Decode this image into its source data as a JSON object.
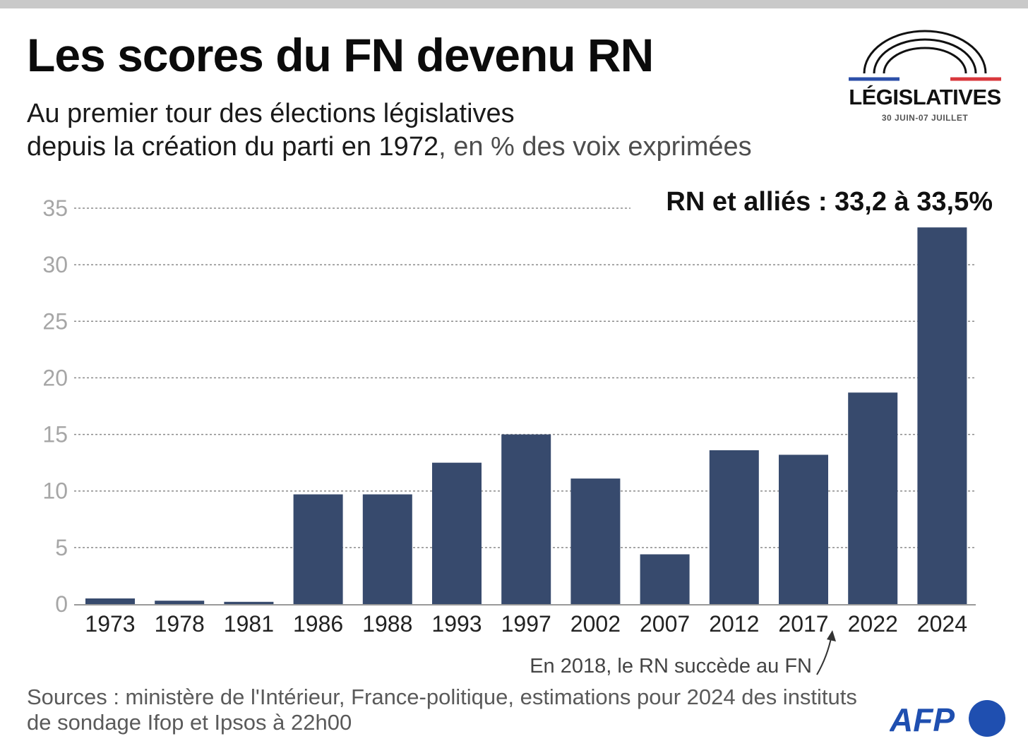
{
  "header": {
    "title": "Les scores du FN devenu RN",
    "subtitle_line1": "Au premier tour des élections législatives",
    "subtitle_line2_main": "depuis la création du parti en 1972",
    "subtitle_line2_unit": ", en % des voix exprimées"
  },
  "logo": {
    "word": "LÉGISLATIVES",
    "dates": "30 JUIN-07 JUILLET"
  },
  "colors": {
    "bar": "#374a6d",
    "grid": "#8a8a8a",
    "tick": "#a6a6a6",
    "afp_blue": "#1f4fb0",
    "flag_blue": "#2c4fa8",
    "flag_red": "#d8373c"
  },
  "chart_data": {
    "type": "bar",
    "categories": [
      "1973",
      "1978",
      "1981",
      "1986",
      "1988",
      "1993",
      "1997",
      "2002",
      "2007",
      "2012",
      "2017",
      "2022",
      "2024"
    ],
    "values": [
      0.5,
      0.3,
      0.2,
      9.7,
      9.7,
      12.5,
      15.0,
      11.1,
      4.4,
      13.6,
      13.2,
      18.7,
      33.3
    ],
    "ylim": [
      0,
      35
    ],
    "yticks": [
      "0",
      "5",
      "10",
      "15",
      "20",
      "25",
      "30",
      "35"
    ],
    "grid": true,
    "highlight_label": "RN et alliés : 33,2 à 33,5%",
    "annotation": "En 2018, le RN succède au FN"
  },
  "footer": {
    "source_line1": "Sources : ministère de l'Intérieur, France-politique, estimations pour 2024 des instituts",
    "source_line2": "de sondage Ifop et Ipsos à 22h00",
    "agency": "AFP"
  }
}
